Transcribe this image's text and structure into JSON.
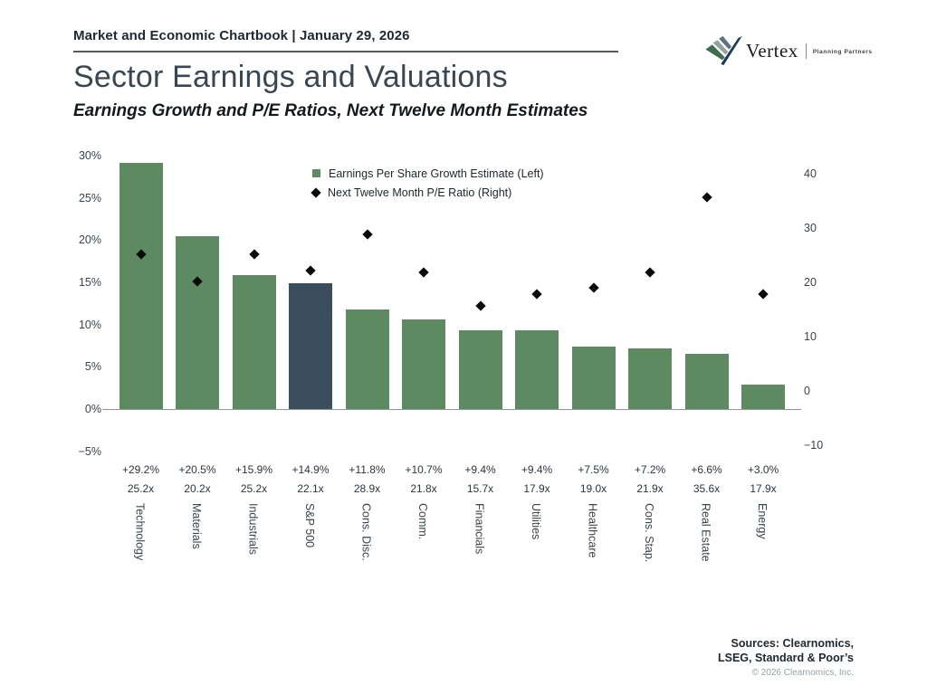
{
  "header": {
    "chartbook_title": "Market and Economic Chartbook | January 29, 2026"
  },
  "logo": {
    "name": "Vertex",
    "tagline": "Planning Partners"
  },
  "title": "Sector Earnings and Valuations",
  "subtitle": "Earnings Growth and P/E Ratios, Next Twelve Month Estimates",
  "legend": {
    "items": [
      {
        "label": "Earnings Per Share Growth Estimate (Left)",
        "marker": "square",
        "color": "#5E8A61"
      },
      {
        "label": "Next Twelve Month P/E Ratio (Right)",
        "marker": "diamond",
        "color": "#0b0b0b"
      }
    ]
  },
  "chart_data": {
    "type": "bar",
    "title": "Sector Earnings and Valuations",
    "subtitle": "Earnings Growth and P/E Ratios, Next Twelve Month Estimates",
    "categories": [
      "Technology",
      "Materials",
      "Industrials",
      "S&P 500",
      "Cons. Disc.",
      "Comm.",
      "Financials",
      "Utilities",
      "Healthcare",
      "Cons. Stap.",
      "Real Estate",
      "Energy"
    ],
    "series": [
      {
        "name": "Earnings Per Share Growth Estimate (Left)",
        "type": "bar",
        "axis": "left",
        "values": [
          29.2,
          20.5,
          15.9,
          14.9,
          11.8,
          10.7,
          9.4,
          9.4,
          7.5,
          7.2,
          6.6,
          3.0
        ],
        "labels": [
          "+29.2%",
          "+20.5%",
          "+15.9%",
          "+14.9%",
          "+11.8%",
          "+10.7%",
          "+9.4%",
          "+9.4%",
          "+7.5%",
          "+7.2%",
          "+6.6%",
          "+3.0%"
        ]
      },
      {
        "name": "Next Twelve Month P/E Ratio (Right)",
        "type": "scatter",
        "axis": "right",
        "values": [
          25.2,
          20.2,
          25.2,
          22.1,
          28.9,
          21.8,
          15.7,
          17.9,
          19.0,
          21.9,
          35.6,
          17.9
        ],
        "labels": [
          "25.2x",
          "20.2x",
          "25.2x",
          "22.1x",
          "28.9x",
          "21.8x",
          "15.7x",
          "17.9x",
          "19.0x",
          "21.9x",
          "35.6x",
          "17.9x"
        ]
      }
    ],
    "left_axis": {
      "ticks": [
        "30%",
        "25%",
        "20%",
        "15%",
        "10%",
        "5%",
        "0%",
        "−5%"
      ],
      "values": [
        30,
        25,
        20,
        15,
        10,
        5,
        0,
        -5
      ],
      "range": [
        -5,
        30
      ],
      "grid": false
    },
    "right_axis": {
      "ticks": [
        "40",
        "30",
        "20",
        "10",
        "0",
        "−10"
      ],
      "values": [
        40,
        30,
        20,
        10,
        0,
        -10
      ],
      "range": [
        -10,
        40
      ],
      "grid": false
    },
    "legend_position": "top-center",
    "bar_colors": {
      "default": "#5E8A61",
      "highlight": "#3B4E5D",
      "highlight_index": 3
    },
    "marker_color": "#0b0b0b"
  },
  "footer": {
    "sources_line1": "Sources: Clearnomics,",
    "sources_line2": "LSEG, Standard & Poor’s",
    "copyright": "© 2026 Clearnomics, Inc."
  }
}
